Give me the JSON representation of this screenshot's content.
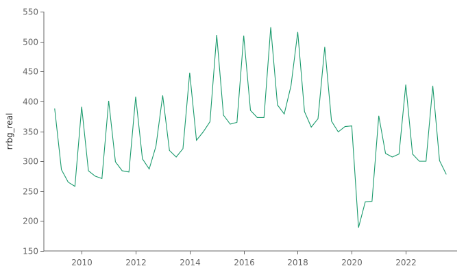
{
  "chart_data": {
    "type": "line",
    "title": "",
    "xlabel": "",
    "ylabel": "rrbg_real",
    "xlim": [
      2008.6,
      2023.9
    ],
    "ylim": [
      150,
      550
    ],
    "xticks": [
      2010,
      2012,
      2014,
      2016,
      2018,
      2020,
      2022
    ],
    "yticks": [
      150,
      200,
      250,
      300,
      350,
      400,
      450,
      500,
      550
    ],
    "grid": false,
    "legend": "none",
    "series": [
      {
        "color": "#1a9a6c",
        "x": [
          2009.0,
          2009.25,
          2009.5,
          2009.75,
          2010.0,
          2010.25,
          2010.5,
          2010.75,
          2011.0,
          2011.25,
          2011.5,
          2011.75,
          2012.0,
          2012.25,
          2012.5,
          2012.75,
          2013.0,
          2013.25,
          2013.5,
          2013.75,
          2014.0,
          2014.25,
          2014.5,
          2014.75,
          2015.0,
          2015.25,
          2015.5,
          2015.75,
          2016.0,
          2016.25,
          2016.5,
          2016.75,
          2017.0,
          2017.25,
          2017.5,
          2017.75,
          2018.0,
          2018.25,
          2018.5,
          2018.75,
          2019.0,
          2019.25,
          2019.5,
          2019.75,
          2020.0,
          2020.25,
          2020.5,
          2020.75,
          2021.0,
          2021.25,
          2021.5,
          2021.75,
          2022.0,
          2022.25,
          2022.5,
          2022.75,
          2023.0,
          2023.25,
          2023.5
        ],
        "values": [
          388,
          286,
          265,
          258,
          391,
          284,
          275,
          271,
          401,
          299,
          284,
          282,
          408,
          304,
          287,
          325,
          410,
          318,
          307,
          321,
          448,
          335,
          349,
          366,
          511,
          377,
          362,
          365,
          510,
          385,
          373,
          373,
          524,
          394,
          379,
          426,
          516,
          383,
          357,
          371,
          491,
          367,
          349,
          358,
          359,
          189,
          232,
          233,
          376,
          313,
          307,
          312,
          428,
          312,
          300,
          300,
          426,
          301,
          278
        ]
      }
    ]
  }
}
